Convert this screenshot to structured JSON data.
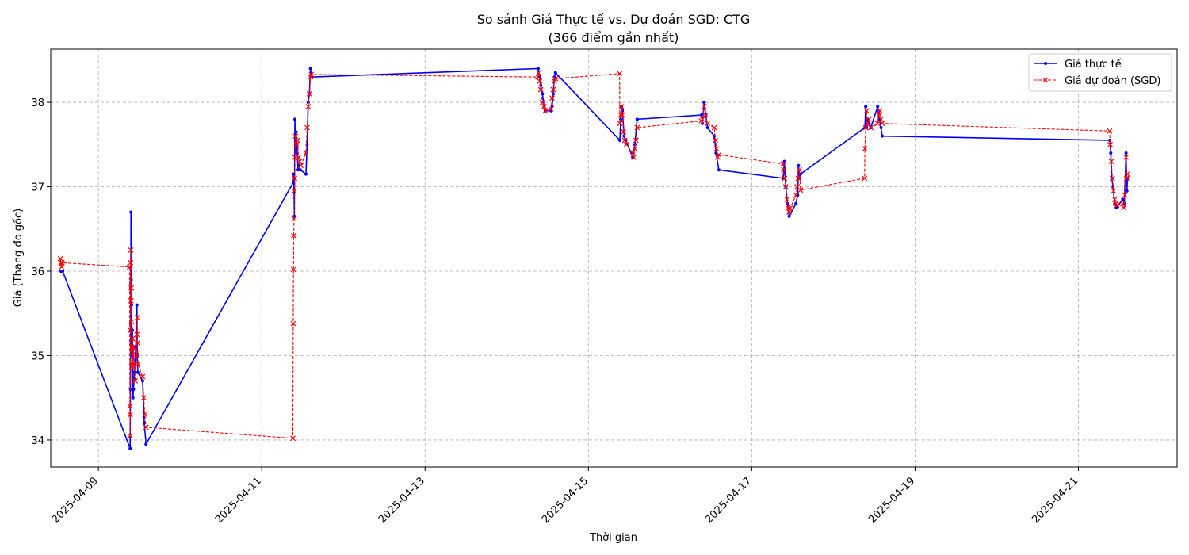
{
  "chart_data": {
    "type": "line",
    "title": "So sánh Giá Thực tế vs. Dự đoán SGD: CTG",
    "subtitle": "(366 điểm gần nhất)",
    "xlabel": "Thời gian",
    "ylabel": "Giá (Thang đo gốc)",
    "xlim": [
      "2025-04-08T10:00",
      "2025-04-22T05:00"
    ],
    "ylim": [
      33.68,
      38.63
    ],
    "xticks": [
      "2025-04-09",
      "2025-04-11",
      "2025-04-13",
      "2025-04-15",
      "2025-04-17",
      "2025-04-19",
      "2025-04-21"
    ],
    "yticks": [
      34,
      35,
      36,
      37,
      38
    ],
    "grid": true,
    "legend_position": "top-right",
    "series": [
      {
        "name": "Giá thực tế",
        "color": "#0000ff",
        "style": "solid",
        "marker": "dot",
        "points": [
          [
            "2025-04-08T13:00",
            36.0
          ],
          [
            "2025-04-08T13:30",
            36.0
          ],
          [
            "2025-04-09T09:20",
            33.9
          ],
          [
            "2025-04-09T09:25",
            34.6
          ],
          [
            "2025-04-09T09:30",
            35.3
          ],
          [
            "2025-04-09T09:35",
            36.7
          ],
          [
            "2025-04-09T09:40",
            35.9
          ],
          [
            "2025-04-09T09:45",
            35.6
          ],
          [
            "2025-04-09T09:50",
            35.3
          ],
          [
            "2025-04-09T09:55",
            35.0
          ],
          [
            "2025-04-09T10:00",
            35.3
          ],
          [
            "2025-04-09T10:05",
            35.0
          ],
          [
            "2025-04-09T10:10",
            34.5
          ],
          [
            "2025-04-09T10:20",
            34.6
          ],
          [
            "2025-04-09T10:35",
            34.8
          ],
          [
            "2025-04-09T11:00",
            35.1
          ],
          [
            "2025-04-09T11:20",
            35.6
          ],
          [
            "2025-04-09T11:25",
            35.0
          ],
          [
            "2025-04-09T11:35",
            34.8
          ],
          [
            "2025-04-09T13:00",
            34.7
          ],
          [
            "2025-04-09T13:30",
            34.2
          ],
          [
            "2025-04-09T14:00",
            33.95
          ],
          [
            "2025-04-11T09:15",
            37.05
          ],
          [
            "2025-04-11T09:25",
            37.15
          ],
          [
            "2025-04-11T09:35",
            36.65
          ],
          [
            "2025-04-11T09:45",
            37.8
          ],
          [
            "2025-04-11T09:55",
            37.4
          ],
          [
            "2025-04-11T10:05",
            37.65
          ],
          [
            "2025-04-11T10:20",
            37.5
          ],
          [
            "2025-04-11T10:40",
            37.2
          ],
          [
            "2025-04-11T11:00",
            37.25
          ],
          [
            "2025-04-11T11:20",
            37.2
          ],
          [
            "2025-04-11T13:00",
            37.15
          ],
          [
            "2025-04-11T13:20",
            37.5
          ],
          [
            "2025-04-11T13:40",
            38.0
          ],
          [
            "2025-04-11T14:00",
            38.1
          ],
          [
            "2025-04-11T14:20",
            38.4
          ],
          [
            "2025-04-11T14:35",
            38.3
          ],
          [
            "2025-04-14T09:15",
            38.4
          ],
          [
            "2025-04-14T09:40",
            38.3
          ],
          [
            "2025-04-14T10:00",
            38.2
          ],
          [
            "2025-04-14T10:30",
            38.1
          ],
          [
            "2025-04-14T11:00",
            37.95
          ],
          [
            "2025-04-14T11:20",
            37.9
          ],
          [
            "2025-04-14T13:00",
            37.9
          ],
          [
            "2025-04-14T13:20",
            37.95
          ],
          [
            "2025-04-14T13:40",
            38.1
          ],
          [
            "2025-04-14T14:00",
            38.3
          ],
          [
            "2025-04-14T14:20",
            38.35
          ],
          [
            "2025-04-15T09:15",
            37.55
          ],
          [
            "2025-04-15T09:30",
            37.8
          ],
          [
            "2025-04-15T09:45",
            37.95
          ],
          [
            "2025-04-15T10:00",
            37.9
          ],
          [
            "2025-04-15T10:30",
            37.6
          ],
          [
            "2025-04-15T11:00",
            37.55
          ],
          [
            "2025-04-15T13:00",
            37.35
          ],
          [
            "2025-04-15T13:40",
            37.5
          ],
          [
            "2025-04-15T14:20",
            37.8
          ],
          [
            "2025-04-16T09:15",
            37.85
          ],
          [
            "2025-04-16T09:30",
            37.75
          ],
          [
            "2025-04-16T10:00",
            38.0
          ],
          [
            "2025-04-16T10:30",
            37.85
          ],
          [
            "2025-04-16T11:00",
            37.7
          ],
          [
            "2025-04-16T13:00",
            37.6
          ],
          [
            "2025-04-16T13:30",
            37.4
          ],
          [
            "2025-04-16T14:20",
            37.2
          ],
          [
            "2025-04-17T09:15",
            37.1
          ],
          [
            "2025-04-17T09:35",
            37.3
          ],
          [
            "2025-04-17T10:00",
            37.0
          ],
          [
            "2025-04-17T10:30",
            36.8
          ],
          [
            "2025-04-17T11:00",
            36.65
          ],
          [
            "2025-04-17T13:00",
            36.8
          ],
          [
            "2025-04-17T13:30",
            36.9
          ],
          [
            "2025-04-17T13:45",
            37.25
          ],
          [
            "2025-04-17T14:00",
            37.1
          ],
          [
            "2025-04-17T14:20",
            37.15
          ],
          [
            "2025-04-18T09:15",
            37.7
          ],
          [
            "2025-04-18T09:30",
            37.95
          ],
          [
            "2025-04-18T09:45",
            37.7
          ],
          [
            "2025-04-18T10:00",
            37.8
          ],
          [
            "2025-04-18T10:30",
            37.75
          ],
          [
            "2025-04-18T11:00",
            37.7
          ],
          [
            "2025-04-18T13:00",
            37.95
          ],
          [
            "2025-04-18T13:30",
            37.8
          ],
          [
            "2025-04-18T14:00",
            37.7
          ],
          [
            "2025-04-18T14:20",
            37.6
          ],
          [
            "2025-04-21T09:15",
            37.55
          ],
          [
            "2025-04-21T09:30",
            37.4
          ],
          [
            "2025-04-21T09:50",
            37.1
          ],
          [
            "2025-04-21T10:10",
            37.0
          ],
          [
            "2025-04-21T10:40",
            36.8
          ],
          [
            "2025-04-21T11:10",
            36.75
          ],
          [
            "2025-04-21T13:00",
            36.85
          ],
          [
            "2025-04-21T13:30",
            36.8
          ],
          [
            "2025-04-21T14:00",
            37.4
          ],
          [
            "2025-04-21T14:15",
            36.95
          ],
          [
            "2025-04-21T14:25",
            37.1
          ]
        ]
      },
      {
        "name": "Giá dự đoán (SGD)",
        "color": "#ff0000",
        "style": "dashed",
        "marker": "x",
        "points": [
          [
            "2025-04-08T12:50",
            36.15
          ],
          [
            "2025-04-08T13:00",
            36.1
          ],
          [
            "2025-04-08T13:10",
            36.05
          ],
          [
            "2025-04-08T13:20",
            36.1
          ],
          [
            "2025-04-09T09:10",
            36.05
          ],
          [
            "2025-04-09T09:15",
            34.4
          ],
          [
            "2025-04-09T09:20",
            34.05
          ],
          [
            "2025-04-09T09:22",
            34.3
          ],
          [
            "2025-04-09T09:25",
            35.3
          ],
          [
            "2025-04-09T09:28",
            36.1
          ],
          [
            "2025-04-09T09:32",
            36.25
          ],
          [
            "2025-04-09T09:36",
            35.65
          ],
          [
            "2025-04-09T09:40",
            35.8
          ],
          [
            "2025-04-09T09:45",
            35.4
          ],
          [
            "2025-04-09T09:50",
            35.1
          ],
          [
            "2025-04-09T09:55",
            34.9
          ],
          [
            "2025-04-09T10:00",
            35.2
          ],
          [
            "2025-04-09T10:05",
            35.05
          ],
          [
            "2025-04-09T10:10",
            34.85
          ],
          [
            "2025-04-09T10:20",
            35.1
          ],
          [
            "2025-04-09T10:30",
            34.9
          ],
          [
            "2025-04-09T10:50",
            34.7
          ],
          [
            "2025-04-09T11:10",
            35.0
          ],
          [
            "2025-04-09T11:20",
            35.25
          ],
          [
            "2025-04-09T11:25",
            35.45
          ],
          [
            "2025-04-09T11:30",
            35.15
          ],
          [
            "2025-04-09T11:40",
            34.9
          ],
          [
            "2025-04-09T13:00",
            34.75
          ],
          [
            "2025-04-09T13:20",
            34.5
          ],
          [
            "2025-04-09T13:40",
            34.3
          ],
          [
            "2025-04-09T14:00",
            34.15
          ],
          [
            "2025-04-11T09:10",
            34.02
          ],
          [
            "2025-04-11T09:15",
            35.38
          ],
          [
            "2025-04-11T09:20",
            36.02
          ],
          [
            "2025-04-11T09:25",
            36.42
          ],
          [
            "2025-04-11T09:30",
            36.62
          ],
          [
            "2025-04-11T09:35",
            36.95
          ],
          [
            "2025-04-11T09:40",
            37.1
          ],
          [
            "2025-04-11T09:45",
            37.35
          ],
          [
            "2025-04-11T09:55",
            37.6
          ],
          [
            "2025-04-11T10:10",
            37.5
          ],
          [
            "2025-04-11T10:30",
            37.55
          ],
          [
            "2025-04-11T10:50",
            37.35
          ],
          [
            "2025-04-11T11:10",
            37.3
          ],
          [
            "2025-04-11T11:30",
            37.25
          ],
          [
            "2025-04-11T13:00",
            37.4
          ],
          [
            "2025-04-11T13:20",
            37.7
          ],
          [
            "2025-04-11T13:40",
            37.95
          ],
          [
            "2025-04-11T14:00",
            38.1
          ],
          [
            "2025-04-11T14:20",
            38.3
          ],
          [
            "2025-04-11T14:35",
            38.33
          ],
          [
            "2025-04-14T09:10",
            38.3
          ],
          [
            "2025-04-14T09:20",
            38.35
          ],
          [
            "2025-04-14T09:40",
            38.25
          ],
          [
            "2025-04-14T10:00",
            38.15
          ],
          [
            "2025-04-14T10:30",
            38.0
          ],
          [
            "2025-04-14T11:00",
            37.95
          ],
          [
            "2025-04-14T11:20",
            37.9
          ],
          [
            "2025-04-14T13:00",
            37.92
          ],
          [
            "2025-04-14T13:20",
            38.05
          ],
          [
            "2025-04-14T13:40",
            38.15
          ],
          [
            "2025-04-14T14:00",
            38.25
          ],
          [
            "2025-04-14T14:20",
            38.28
          ],
          [
            "2025-04-15T09:10",
            38.34
          ],
          [
            "2025-04-15T09:15",
            37.75
          ],
          [
            "2025-04-15T09:30",
            37.85
          ],
          [
            "2025-04-15T09:45",
            37.95
          ],
          [
            "2025-04-15T10:00",
            37.85
          ],
          [
            "2025-04-15T10:20",
            37.65
          ],
          [
            "2025-04-15T10:40",
            37.55
          ],
          [
            "2025-04-15T11:10",
            37.5
          ],
          [
            "2025-04-15T13:00",
            37.4
          ],
          [
            "2025-04-15T13:20",
            37.35
          ],
          [
            "2025-04-15T13:40",
            37.45
          ],
          [
            "2025-04-15T14:00",
            37.55
          ],
          [
            "2025-04-15T14:20",
            37.7
          ],
          [
            "2025-04-16T09:10",
            37.78
          ],
          [
            "2025-04-16T09:30",
            37.8
          ],
          [
            "2025-04-16T10:00",
            37.95
          ],
          [
            "2025-04-16T10:30",
            37.85
          ],
          [
            "2025-04-16T11:00",
            37.75
          ],
          [
            "2025-04-16T13:00",
            37.7
          ],
          [
            "2025-04-16T13:20",
            37.55
          ],
          [
            "2025-04-16T13:40",
            37.45
          ],
          [
            "2025-04-16T14:00",
            37.35
          ],
          [
            "2025-04-16T14:20",
            37.38
          ],
          [
            "2025-04-17T09:10",
            37.27
          ],
          [
            "2025-04-17T09:20",
            37.2
          ],
          [
            "2025-04-17T09:40",
            37.1
          ],
          [
            "2025-04-17T10:00",
            37.0
          ],
          [
            "2025-04-17T10:20",
            36.85
          ],
          [
            "2025-04-17T10:40",
            36.75
          ],
          [
            "2025-04-17T11:00",
            36.7
          ],
          [
            "2025-04-17T11:20",
            36.75
          ],
          [
            "2025-04-17T13:00",
            36.9
          ],
          [
            "2025-04-17T13:20",
            37.0
          ],
          [
            "2025-04-17T13:40",
            37.1
          ],
          [
            "2025-04-17T14:00",
            37.2
          ],
          [
            "2025-04-17T14:20",
            36.96
          ],
          [
            "2025-04-18T09:10",
            37.1
          ],
          [
            "2025-04-18T09:15",
            37.45
          ],
          [
            "2025-04-18T09:30",
            37.7
          ],
          [
            "2025-04-18T09:45",
            37.9
          ],
          [
            "2025-04-18T10:00",
            37.75
          ],
          [
            "2025-04-18T10:30",
            37.8
          ],
          [
            "2025-04-18T11:00",
            37.7
          ],
          [
            "2025-04-18T13:00",
            37.75
          ],
          [
            "2025-04-18T13:20",
            37.85
          ],
          [
            "2025-04-18T13:40",
            37.9
          ],
          [
            "2025-04-18T14:00",
            37.8
          ],
          [
            "2025-04-18T14:20",
            37.75
          ],
          [
            "2025-04-21T09:10",
            37.66
          ],
          [
            "2025-04-21T09:20",
            37.5
          ],
          [
            "2025-04-21T09:40",
            37.3
          ],
          [
            "2025-04-21T10:00",
            37.1
          ],
          [
            "2025-04-21T10:20",
            36.95
          ],
          [
            "2025-04-21T10:40",
            36.85
          ],
          [
            "2025-04-21T11:00",
            36.8
          ],
          [
            "2025-04-21T11:20",
            36.78
          ],
          [
            "2025-04-21T13:00",
            36.8
          ],
          [
            "2025-04-21T13:20",
            36.75
          ],
          [
            "2025-04-21T13:40",
            36.9
          ],
          [
            "2025-04-21T14:00",
            37.35
          ],
          [
            "2025-04-21T14:10",
            37.1
          ],
          [
            "2025-04-21T14:20",
            37.15
          ]
        ]
      }
    ]
  }
}
